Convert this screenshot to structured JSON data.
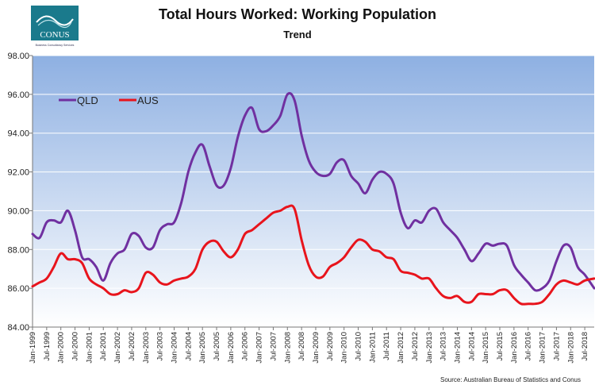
{
  "logo": {
    "name": "CONUS",
    "tagline": "Business Consultancy Services",
    "color": "#1a7a8c"
  },
  "source": "Source: Australian Bureau of Statistics and Conus",
  "chart_data": {
    "type": "line",
    "title": "Total Hours Worked: Working Population",
    "subtitle": "Trend",
    "xlabel": "",
    "ylabel": "",
    "ylim": [
      84.0,
      98.0
    ],
    "yticks": [
      "84.00",
      "86.00",
      "88.00",
      "90.00",
      "92.00",
      "94.00",
      "96.00",
      "98.00"
    ],
    "grid": true,
    "legend_position": "top-left",
    "x_tick_labels": [
      "Jan-1999",
      "Jul-1999",
      "Jan-2000",
      "Jul-2000",
      "Jan-2001",
      "Jul-2001",
      "Jan-2002",
      "Jul-2002",
      "Jan-2003",
      "Jul-2003",
      "Jan-2004",
      "Jul-2004",
      "Jan-2005",
      "Jul-2005",
      "Jan-2006",
      "Jul-2006",
      "Jan-2007",
      "Jul-2007",
      "Jan-2008",
      "Jul-2008",
      "Jan-2009",
      "Jul-2009",
      "Jan-2010",
      "Jul-2010",
      "Jan-2011",
      "Jul-2011",
      "Jan-2012",
      "Jul-2012",
      "Jan-2013",
      "Jul-2013",
      "Jan-2014",
      "Jul-2014",
      "Jan-2015",
      "Jul-2015",
      "Jan-2016",
      "Jul-2016",
      "Jan-2017",
      "Jul-2017",
      "Jan-2018",
      "Jul-2018"
    ],
    "x_range": [
      "1999-01",
      "2018-11"
    ],
    "series": [
      {
        "name": "QLD",
        "color": "#7030a0",
        "points": [
          [
            "1999-01",
            88.8
          ],
          [
            "1999-04",
            88.6
          ],
          [
            "1999-07",
            89.4
          ],
          [
            "1999-10",
            89.5
          ],
          [
            "2000-01",
            89.4
          ],
          [
            "2000-04",
            90.0
          ],
          [
            "2000-07",
            89.0
          ],
          [
            "2000-10",
            87.6
          ],
          [
            "2001-01",
            87.5
          ],
          [
            "2001-04",
            87.1
          ],
          [
            "2001-07",
            86.4
          ],
          [
            "2001-10",
            87.3
          ],
          [
            "2002-01",
            87.8
          ],
          [
            "2002-04",
            88.0
          ],
          [
            "2002-07",
            88.8
          ],
          [
            "2002-10",
            88.7
          ],
          [
            "2003-01",
            88.1
          ],
          [
            "2003-04",
            88.1
          ],
          [
            "2003-07",
            89.0
          ],
          [
            "2003-10",
            89.3
          ],
          [
            "2004-01",
            89.4
          ],
          [
            "2004-04",
            90.4
          ],
          [
            "2004-07",
            92.0
          ],
          [
            "2004-10",
            93.0
          ],
          [
            "2005-01",
            93.4
          ],
          [
            "2005-04",
            92.3
          ],
          [
            "2005-07",
            91.3
          ],
          [
            "2005-10",
            91.3
          ],
          [
            "2006-01",
            92.2
          ],
          [
            "2006-04",
            93.8
          ],
          [
            "2006-07",
            94.9
          ],
          [
            "2006-10",
            95.3
          ],
          [
            "2007-01",
            94.2
          ],
          [
            "2007-04",
            94.1
          ],
          [
            "2007-07",
            94.4
          ],
          [
            "2007-10",
            94.9
          ],
          [
            "2008-01",
            96.0
          ],
          [
            "2008-04",
            95.7
          ],
          [
            "2008-07",
            93.9
          ],
          [
            "2008-10",
            92.6
          ],
          [
            "2009-01",
            92.0
          ],
          [
            "2009-04",
            91.8
          ],
          [
            "2009-07",
            91.9
          ],
          [
            "2009-10",
            92.5
          ],
          [
            "2010-01",
            92.6
          ],
          [
            "2010-04",
            91.8
          ],
          [
            "2010-07",
            91.4
          ],
          [
            "2010-10",
            90.9
          ],
          [
            "2011-01",
            91.6
          ],
          [
            "2011-04",
            92.0
          ],
          [
            "2011-07",
            91.9
          ],
          [
            "2011-10",
            91.4
          ],
          [
            "2012-01",
            89.9
          ],
          [
            "2012-04",
            89.1
          ],
          [
            "2012-07",
            89.5
          ],
          [
            "2012-10",
            89.4
          ],
          [
            "2013-01",
            90.0
          ],
          [
            "2013-04",
            90.1
          ],
          [
            "2013-07",
            89.4
          ],
          [
            "2013-10",
            89.0
          ],
          [
            "2014-01",
            88.6
          ],
          [
            "2014-04",
            88.0
          ],
          [
            "2014-07",
            87.4
          ],
          [
            "2014-10",
            87.8
          ],
          [
            "2015-01",
            88.3
          ],
          [
            "2015-04",
            88.2
          ],
          [
            "2015-07",
            88.3
          ],
          [
            "2015-10",
            88.2
          ],
          [
            "2016-01",
            87.2
          ],
          [
            "2016-04",
            86.7
          ],
          [
            "2016-07",
            86.3
          ],
          [
            "2016-10",
            85.9
          ],
          [
            "2017-01",
            86.0
          ],
          [
            "2017-04",
            86.4
          ],
          [
            "2017-07",
            87.4
          ],
          [
            "2017-10",
            88.2
          ],
          [
            "2018-01",
            88.1
          ],
          [
            "2018-04",
            87.1
          ],
          [
            "2018-07",
            86.7
          ],
          [
            "2018-11",
            86.0
          ]
        ]
      },
      {
        "name": "AUS",
        "color": "#e8141c",
        "points": [
          [
            "1999-01",
            86.1
          ],
          [
            "1999-04",
            86.3
          ],
          [
            "1999-07",
            86.5
          ],
          [
            "1999-10",
            87.1
          ],
          [
            "2000-01",
            87.8
          ],
          [
            "2000-04",
            87.5
          ],
          [
            "2000-07",
            87.5
          ],
          [
            "2000-10",
            87.3
          ],
          [
            "2001-01",
            86.5
          ],
          [
            "2001-04",
            86.2
          ],
          [
            "2001-07",
            86.0
          ],
          [
            "2001-10",
            85.7
          ],
          [
            "2002-01",
            85.7
          ],
          [
            "2002-04",
            85.9
          ],
          [
            "2002-07",
            85.8
          ],
          [
            "2002-10",
            86.0
          ],
          [
            "2003-01",
            86.8
          ],
          [
            "2003-04",
            86.7
          ],
          [
            "2003-07",
            86.3
          ],
          [
            "2003-10",
            86.2
          ],
          [
            "2004-01",
            86.4
          ],
          [
            "2004-04",
            86.5
          ],
          [
            "2004-07",
            86.6
          ],
          [
            "2004-10",
            87.0
          ],
          [
            "2005-01",
            88.0
          ],
          [
            "2005-04",
            88.4
          ],
          [
            "2005-07",
            88.4
          ],
          [
            "2005-10",
            87.9
          ],
          [
            "2006-01",
            87.6
          ],
          [
            "2006-04",
            88.0
          ],
          [
            "2006-07",
            88.8
          ],
          [
            "2006-10",
            89.0
          ],
          [
            "2007-01",
            89.3
          ],
          [
            "2007-04",
            89.6
          ],
          [
            "2007-07",
            89.9
          ],
          [
            "2007-10",
            90.0
          ],
          [
            "2008-01",
            90.2
          ],
          [
            "2008-04",
            90.1
          ],
          [
            "2008-07",
            88.5
          ],
          [
            "2008-10",
            87.2
          ],
          [
            "2009-01",
            86.6
          ],
          [
            "2009-04",
            86.6
          ],
          [
            "2009-07",
            87.1
          ],
          [
            "2009-10",
            87.3
          ],
          [
            "2010-01",
            87.6
          ],
          [
            "2010-04",
            88.1
          ],
          [
            "2010-07",
            88.5
          ],
          [
            "2010-10",
            88.4
          ],
          [
            "2011-01",
            88.0
          ],
          [
            "2011-04",
            87.9
          ],
          [
            "2011-07",
            87.6
          ],
          [
            "2011-10",
            87.5
          ],
          [
            "2012-01",
            86.9
          ],
          [
            "2012-04",
            86.8
          ],
          [
            "2012-07",
            86.7
          ],
          [
            "2012-10",
            86.5
          ],
          [
            "2013-01",
            86.5
          ],
          [
            "2013-04",
            86.0
          ],
          [
            "2013-07",
            85.6
          ],
          [
            "2013-10",
            85.5
          ],
          [
            "2014-01",
            85.6
          ],
          [
            "2014-04",
            85.3
          ],
          [
            "2014-07",
            85.3
          ],
          [
            "2014-10",
            85.7
          ],
          [
            "2015-01",
            85.7
          ],
          [
            "2015-04",
            85.7
          ],
          [
            "2015-07",
            85.9
          ],
          [
            "2015-10",
            85.9
          ],
          [
            "2016-01",
            85.5
          ],
          [
            "2016-04",
            85.2
          ],
          [
            "2016-07",
            85.2
          ],
          [
            "2016-10",
            85.2
          ],
          [
            "2017-01",
            85.3
          ],
          [
            "2017-04",
            85.7
          ],
          [
            "2017-07",
            86.2
          ],
          [
            "2017-10",
            86.4
          ],
          [
            "2018-01",
            86.3
          ],
          [
            "2018-04",
            86.2
          ],
          [
            "2018-07",
            86.4
          ],
          [
            "2018-11",
            86.5
          ]
        ]
      }
    ]
  }
}
